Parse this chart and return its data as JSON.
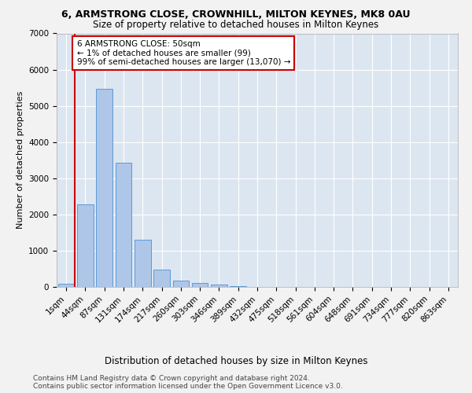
{
  "title_line1": "6, ARMSTRONG CLOSE, CROWNHILL, MILTON KEYNES, MK8 0AU",
  "title_line2": "Size of property relative to detached houses in Milton Keynes",
  "xlabel": "Distribution of detached houses by size in Milton Keynes",
  "ylabel": "Number of detached properties",
  "footer1": "Contains HM Land Registry data © Crown copyright and database right 2024.",
  "footer2": "Contains public sector information licensed under the Open Government Licence v3.0.",
  "annotation_line1": "6 ARMSTRONG CLOSE: 50sqm",
  "annotation_line2": "← 1% of detached houses are smaller (99)",
  "annotation_line3": "99% of semi-detached houses are larger (13,070) →",
  "bar_color": "#aec6e8",
  "bar_edge_color": "#5b9bd5",
  "background_color": "#dce6f1",
  "fig_background": "#f2f2f2",
  "vline_color": "#cc0000",
  "categories": [
    "1sqm",
    "44sqm",
    "87sqm",
    "131sqm",
    "174sqm",
    "217sqm",
    "260sqm",
    "303sqm",
    "346sqm",
    "389sqm",
    "432sqm",
    "475sqm",
    "518sqm",
    "561sqm",
    "604sqm",
    "648sqm",
    "691sqm",
    "734sqm",
    "777sqm",
    "820sqm",
    "863sqm"
  ],
  "values": [
    80,
    2280,
    5460,
    3430,
    1310,
    480,
    175,
    100,
    65,
    30,
    0,
    0,
    0,
    0,
    0,
    0,
    0,
    0,
    0,
    0,
    0
  ],
  "ylim": [
    0,
    7000
  ],
  "yticks": [
    0,
    1000,
    2000,
    3000,
    4000,
    5000,
    6000,
    7000
  ],
  "vline_x": 0.45,
  "title1_fontsize": 9,
  "title2_fontsize": 8.5,
  "ylabel_fontsize": 8,
  "xlabel_fontsize": 8.5,
  "tick_fontsize": 7.5,
  "footer_fontsize": 6.5,
  "annot_fontsize": 7.5
}
